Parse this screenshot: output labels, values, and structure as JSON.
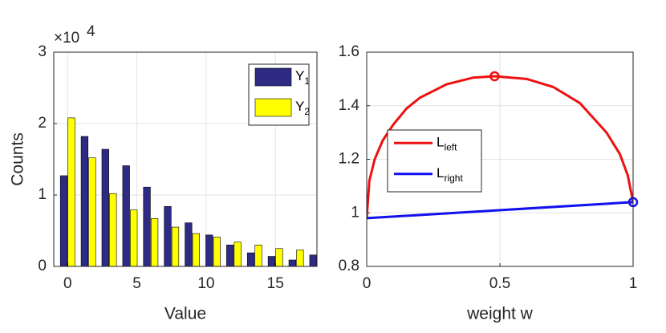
{
  "chart_data": [
    {
      "type": "bar",
      "xlabel": "Value",
      "ylabel": "Counts",
      "y_exponent": "×10",
      "y_exponent_power": "4",
      "x": [
        0,
        1.5,
        3,
        4.5,
        6,
        7.5,
        9,
        10.5,
        12,
        13.5,
        15,
        16.5,
        18
      ],
      "series": [
        {
          "name": "Y1",
          "color": "#2e2b85",
          "values": [
            1.27,
            1.82,
            1.64,
            1.41,
            1.11,
            0.84,
            0.61,
            0.44,
            0.3,
            0.19,
            0.14,
            0.09,
            0.16
          ]
        },
        {
          "name": "Y2",
          "color": "#ffff00",
          "values": [
            2.08,
            1.52,
            1.02,
            0.79,
            0.67,
            0.55,
            0.46,
            0.41,
            0.34,
            0.3,
            0.25,
            0.23,
            null
          ]
        }
      ],
      "xlim": [
        -1,
        18
      ],
      "ylim": [
        0,
        3
      ],
      "xticks": [
        0,
        5,
        10,
        15
      ],
      "yticks": [
        0,
        1,
        2,
        3
      ],
      "grid": true,
      "legend": "top-right"
    },
    {
      "type": "line",
      "xlabel": "weight w",
      "series": [
        {
          "name": "Lleft",
          "color": "#ee1111",
          "x": [
            0,
            0.01,
            0.03,
            0.06,
            0.1,
            0.15,
            0.2,
            0.3,
            0.4,
            0.48,
            0.6,
            0.7,
            0.8,
            0.9,
            0.95,
            0.98,
            1
          ],
          "values": [
            0.98,
            1.12,
            1.2,
            1.27,
            1.33,
            1.39,
            1.43,
            1.48,
            1.505,
            1.51,
            1.5,
            1.47,
            1.41,
            1.3,
            1.22,
            1.14,
            1.04
          ],
          "highlight": {
            "x": 0.48,
            "y": 1.51
          }
        },
        {
          "name": "Lright",
          "color": "#1111ee",
          "x": [
            0,
            1
          ],
          "values": [
            0.98,
            1.04
          ],
          "highlight": {
            "x": 1,
            "y": 1.04
          }
        }
      ],
      "xlim": [
        0,
        1
      ],
      "ylim": [
        0.8,
        1.6
      ],
      "xticks": [
        0,
        0.5,
        1
      ],
      "yticks": [
        0.8,
        1,
        1.2,
        1.4,
        1.6
      ],
      "grid": true,
      "legend": "center-left"
    }
  ]
}
